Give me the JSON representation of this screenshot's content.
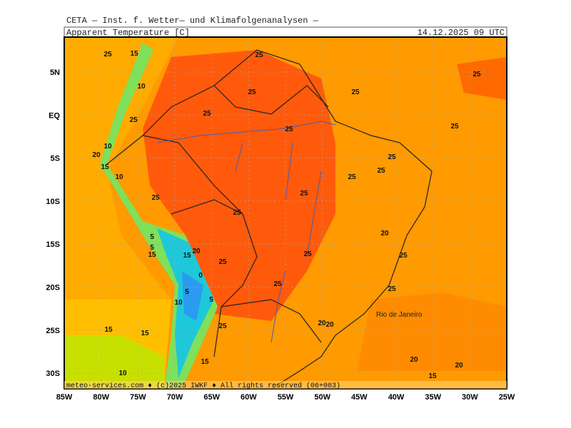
{
  "header": {
    "institute": "CETA — Inst. f. Wetter— und Klimafolgenanalysen —",
    "parameter": "Apparent Temperature [C]",
    "datetime": "14.12.2025 09 UTC"
  },
  "map": {
    "lat_labels": [
      "5N",
      "EQ",
      "5S",
      "10S",
      "15S",
      "20S",
      "25S",
      "30S"
    ],
    "lon_labels": [
      "85W",
      "80W",
      "75W",
      "70W",
      "65W",
      "60W",
      "55W",
      "50W",
      "45W",
      "40W",
      "35W",
      "30W",
      "25W"
    ],
    "contour_labels": [
      "25",
      "15",
      "25",
      "25",
      "25",
      "10",
      "25",
      "25",
      "25",
      "25",
      "25",
      "10",
      "20",
      "15",
      "10",
      "25",
      "25",
      "25",
      "25",
      "25",
      "25",
      "20",
      "5",
      "5",
      "15",
      "20",
      "15",
      "25",
      "25",
      "25",
      "0",
      "25",
      "25",
      "5",
      "5",
      "10",
      "20",
      "20",
      "15",
      "15",
      "25",
      "20",
      "15",
      "20",
      "10",
      "15"
    ],
    "city": "Rio de Janeiro",
    "footer": "meteo-services.com ♦ (c)2025 IWKF ♦ All rights reserved (06+003)"
  }
}
